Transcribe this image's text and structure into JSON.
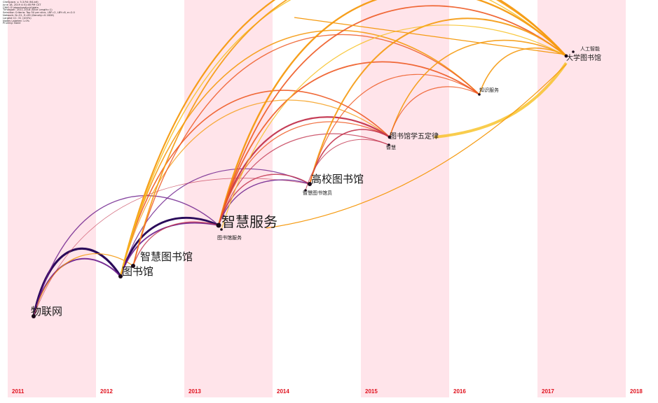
{
  "meta_lines": [
    "CiteSpace, v. 5.3.R4 (64-bit)",
    "June 18, 2019 4:51:46 PM CST",
    "CNKI: E:\\download\\cnki\\data",
    "Timespan: 2011-2018 (Slice Length=1)",
    "Selection Criteria: Top 50 per slice, LRF=2, LBY=8, e=2.0",
    "Network: N=31, E=85 (Density=0.1828)",
    "Largest CC: 31 (100%)",
    "Nodes Labeled: 1.0%",
    "Pruning: None"
  ],
  "colors": {
    "band": "#ffe4ea",
    "year_label": "#e0101c",
    "gradient": [
      "#2a0a5a",
      "#6a1a8a",
      "#c2334d",
      "#ee5a24",
      "#f59a10",
      "#f7c020"
    ]
  },
  "chart_data": {
    "type": "timezone-network",
    "years": [
      "2011",
      "2012",
      "2013",
      "2014",
      "2015",
      "2016",
      "2017",
      "2018"
    ],
    "nodes": [
      {
        "id": "iot",
        "label": "物联网",
        "year": 2011,
        "size": "large"
      },
      {
        "id": "lib",
        "label": "图书馆",
        "year": 2012,
        "size": "large"
      },
      {
        "id": "smartlib",
        "label": "智慧图书馆",
        "year": 2012,
        "size": "large"
      },
      {
        "id": "smartsvc",
        "label": "智慧服务",
        "year": 2013,
        "size": "xlarge"
      },
      {
        "id": "libsvc",
        "label": "图书馆服务",
        "year": 2013,
        "size": "small"
      },
      {
        "id": "univ",
        "label": "高校图书馆",
        "year": 2014,
        "size": "large"
      },
      {
        "id": "smartlibrarian",
        "label": "智慧图书馆员",
        "year": 2014,
        "size": "small"
      },
      {
        "id": "fivelaws",
        "label": "图书馆学五定律",
        "year": 2015,
        "size": "medium"
      },
      {
        "id": "wisdom",
        "label": "智慧",
        "year": 2015,
        "size": "small"
      },
      {
        "id": "knowsvc",
        "label": "知识服务",
        "year": 2016,
        "size": "small"
      },
      {
        "id": "univlib17",
        "label": "大学图书馆",
        "year": 2017,
        "size": "medium"
      },
      {
        "id": "ai",
        "label": "人工智能",
        "year": 2017,
        "size": "small"
      }
    ]
  }
}
